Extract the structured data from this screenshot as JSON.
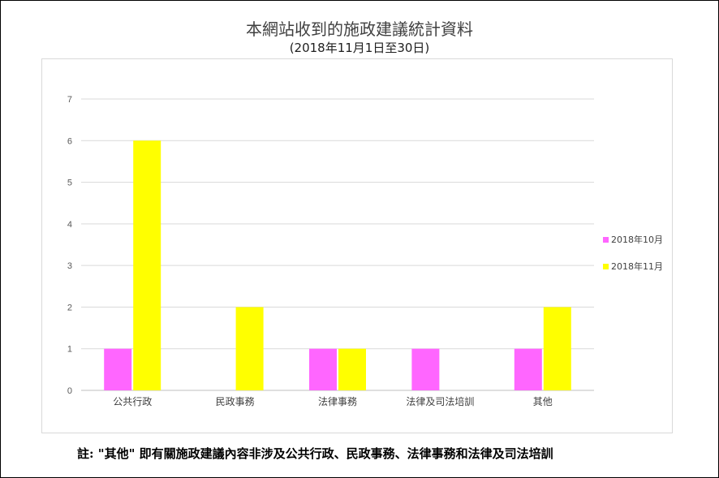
{
  "chart_data": {
    "type": "bar",
    "title": "本網站收到的施政建議統計資料",
    "subtitle": "(2018年11月1日至30日)",
    "categories": [
      "公共行政",
      "民政事務",
      "法律事務",
      "法律及司法培訓",
      "其他"
    ],
    "series": [
      {
        "name": "2018年10月",
        "values": [
          1,
          0,
          1,
          1,
          1
        ],
        "color": "#ff66ff"
      },
      {
        "name": "2018年11月",
        "values": [
          6,
          2,
          1,
          0,
          2
        ],
        "color": "#ffff00"
      }
    ],
    "ylim": [
      0,
      7
    ],
    "yticks": [
      0,
      1,
      2,
      3,
      4,
      5,
      6,
      7
    ],
    "grid": true,
    "legend": "right"
  },
  "note": "註: \"其他\" 即有關施政建議內容非涉及公共行政、民政事務、法律事務和法律及司法培訓"
}
